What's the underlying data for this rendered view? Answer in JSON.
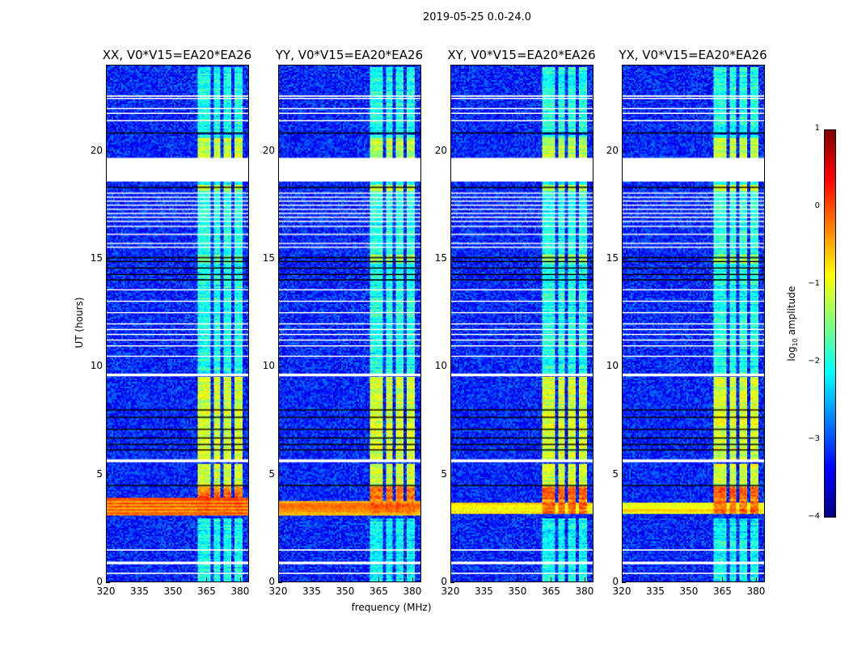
{
  "chart_data": {
    "type": "heatmap",
    "title": "2019-05-25 0.0-24.0",
    "xlabel": "frequency (MHz)",
    "ylabel": "UT (hours)",
    "xlim": [
      320,
      384
    ],
    "ylim": [
      0,
      24
    ],
    "xticks": [
      "320",
      "335",
      "350",
      "365",
      "380"
    ],
    "xtick_values": [
      320,
      335,
      350,
      365,
      380
    ],
    "yticks": [
      "0",
      "5",
      "10",
      "15",
      "20"
    ],
    "ytick_values": [
      0,
      5,
      10,
      15,
      20
    ],
    "colorbar": {
      "label_parts": [
        "log",
        "10",
        " amplitude"
      ],
      "range": [
        -4,
        1
      ],
      "ticks": [
        "−4",
        "−3",
        "−2",
        "−1",
        "0",
        "1"
      ],
      "tick_values": [
        -4,
        -3,
        -2,
        -1,
        0,
        1
      ],
      "colormap": "jet"
    },
    "background_level": -3.2,
    "rfi_band_mhz": [
      361,
      381
    ],
    "rfi_band_gaps_mhz": [
      367.5,
      372,
      376.5
    ],
    "band_intervals": [
      {
        "ut": [
          0,
          3.0
        ],
        "level": -2.1
      },
      {
        "ut": [
          3.2,
          4.5
        ],
        "level": -0.2
      },
      {
        "ut": [
          4.5,
          5.5
        ],
        "level": -1.1
      },
      {
        "ut": [
          5.7,
          9.6
        ],
        "level": -1.1
      },
      {
        "ut": [
          9.7,
          20.8
        ],
        "level": -2.0
      },
      {
        "ut": [
          14.8,
          15.3
        ],
        "level": -1.5
      },
      {
        "ut": [
          18.2,
          18.5
        ],
        "level": -1.2
      },
      {
        "ut": [
          19.7,
          20.7
        ],
        "level": -1.2
      },
      {
        "ut": [
          20.9,
          24
        ],
        "level": -2.0
      }
    ],
    "flagged_ut": [
      [
        22.55,
        22.62
      ],
      [
        22.45,
        22.5
      ],
      [
        21.98,
        22.03
      ],
      [
        21.76,
        21.81
      ],
      [
        21.42,
        21.47
      ],
      [
        18.6,
        19.7
      ],
      [
        18.04,
        18.09
      ],
      [
        17.85,
        17.9
      ],
      [
        17.67,
        17.72
      ],
      [
        17.48,
        17.53
      ],
      [
        17.29,
        17.34
      ],
      [
        17.1,
        17.15
      ],
      [
        16.92,
        16.97
      ],
      [
        16.73,
        16.78
      ],
      [
        16.5,
        16.55
      ],
      [
        16.13,
        16.18
      ],
      [
        15.71,
        15.76
      ],
      [
        15.53,
        15.58
      ],
      [
        13.54,
        13.59
      ],
      [
        13.01,
        13.06
      ],
      [
        12.48,
        12.53
      ],
      [
        11.96,
        12.01
      ],
      [
        11.7,
        11.75
      ],
      [
        11.47,
        11.52
      ],
      [
        11.21,
        11.26
      ],
      [
        10.94,
        10.99
      ],
      [
        10.46,
        10.51
      ],
      [
        9.55,
        9.68
      ],
      [
        5.55,
        5.68
      ],
      [
        1.43,
        1.49
      ],
      [
        0.8,
        0.92
      ],
      [
        0.35,
        0.41
      ]
    ],
    "no_data_ut": [
      20.88,
      18.36,
      15.1,
      14.9,
      14.6,
      14.3,
      14.05,
      8.0,
      7.66,
      7.1,
      6.7,
      6.4,
      6.15,
      4.5
    ],
    "panels": [
      {
        "title": "XX, V0*V15=EA20*EA26",
        "broadband_rfi": {
          "ut": [
            3.1,
            3.9
          ],
          "level": -0.2
        }
      },
      {
        "title": "YY, V0*V15=EA20*EA26",
        "broadband_rfi": {
          "ut": [
            3.1,
            3.8
          ],
          "level": -0.3
        }
      },
      {
        "title": "XY, V0*V15=EA20*EA26",
        "broadband_rfi": {
          "ut": [
            3.2,
            3.7
          ],
          "level": -0.9
        }
      },
      {
        "title": "YX, V0*V15=EA20*EA26",
        "broadband_rfi": {
          "ut": [
            3.2,
            3.7
          ],
          "level": -0.9
        }
      }
    ]
  }
}
